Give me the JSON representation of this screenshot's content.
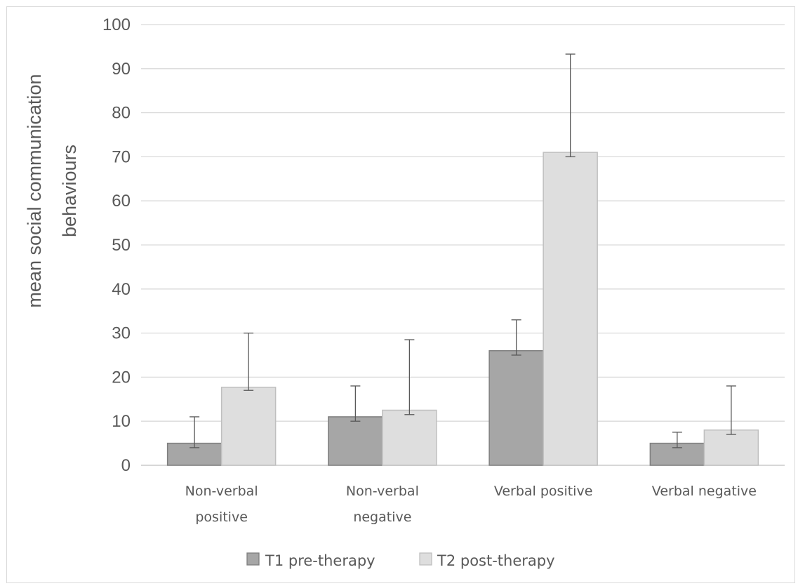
{
  "chart_data": {
    "type": "bar",
    "title": "",
    "xlabel": "",
    "ylabel": [
      "mean social communication",
      "behaviours"
    ],
    "ylim": [
      0,
      100
    ],
    "yticks": [
      0,
      10,
      20,
      30,
      40,
      50,
      60,
      70,
      80,
      90,
      100
    ],
    "grid": true,
    "legend_position": "bottom",
    "categories": [
      [
        "Non-verbal",
        "positive"
      ],
      [
        "Non-verbal",
        "negative"
      ],
      [
        "Verbal positive"
      ],
      [
        "Verbal negative"
      ]
    ],
    "series": [
      {
        "name": "T1 pre-therapy",
        "color": "#a6a6a6",
        "values": [
          5,
          11,
          26,
          5
        ],
        "error_low": [
          4,
          10,
          25,
          4
        ],
        "error_high": [
          11,
          18,
          33,
          7.5
        ]
      },
      {
        "name": "T2 post-therapy",
        "color": "#dedede",
        "values": [
          17.7,
          12.5,
          71,
          8
        ],
        "error_low": [
          17,
          11.5,
          70,
          7
        ],
        "error_high": [
          30,
          28.5,
          93.3,
          18
        ]
      }
    ]
  }
}
